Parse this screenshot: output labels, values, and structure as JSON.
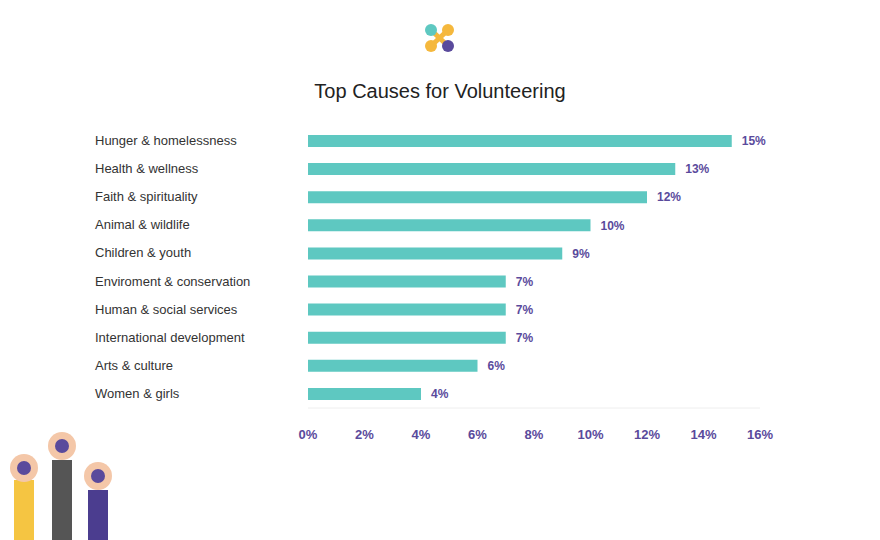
{
  "chart_data": {
    "type": "bar",
    "title": "Top Causes for Volunteering",
    "orientation": "horizontal",
    "categories": [
      "Hunger & homelessness",
      "Health & wellness",
      "Faith & spirituality",
      "Animal & wildlife",
      "Children & youth",
      "Enviroment & conservation",
      "Human & social services",
      "International development",
      "Arts & culture",
      "Women & girls"
    ],
    "values": [
      15,
      13,
      12,
      10,
      9,
      7,
      7,
      7,
      6,
      4
    ],
    "value_labels": [
      "15%",
      "13%",
      "12%",
      "10%",
      "9%",
      "7%",
      "7%",
      "7%",
      "6%",
      "4%"
    ],
    "color": "#5ec8c1",
    "xlim": [
      0,
      16
    ],
    "xticks": [
      {
        "value": 0,
        "label": "0%"
      },
      {
        "value": 2,
        "label": "2%"
      },
      {
        "value": 4,
        "label": "4%"
      },
      {
        "value": 6,
        "label": "6%"
      },
      {
        "value": 8,
        "label": "8%"
      },
      {
        "value": 10,
        "label": "10%"
      },
      {
        "value": 12,
        "label": "12%"
      },
      {
        "value": 14,
        "label": "14%"
      },
      {
        "value": 16,
        "label": "16%"
      }
    ],
    "grid": false,
    "data_labels": true
  }
}
